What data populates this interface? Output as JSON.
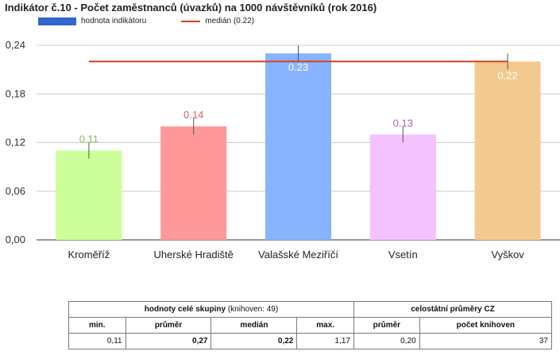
{
  "title": "Indikátor č.10 - Počet zaměstnanců (úvazků) na 1000 návštěvníků (rok 2016)",
  "legend": {
    "bar_label": "hodnota indikátoru",
    "line_label": "medián (0.22)"
  },
  "chart_data": {
    "type": "bar",
    "categories": [
      "Kroměříž",
      "Uherské Hradiště",
      "Valašské Meziříčí",
      "Vsetín",
      "Vyškov"
    ],
    "values": [
      0.11,
      0.14,
      0.23,
      0.13,
      0.22
    ],
    "value_labels": [
      "0.11",
      "0.14",
      "0.23",
      "0.13",
      "0.22"
    ],
    "bar_colors": [
      "#ccff99",
      "#ff9999",
      "#88b4ff",
      "#f4c2ff",
      "#f4c990"
    ],
    "label_colors": [
      "#88bb55",
      "#cc6666",
      "#ffffff",
      "#aa66bb",
      "#ffffff"
    ],
    "median": 0.22,
    "median_color": "#cc4422",
    "yticks": [
      "0,00",
      "0,06",
      "0,12",
      "0,18",
      "0,24"
    ],
    "ytick_values": [
      0,
      0.06,
      0.12,
      0.18,
      0.24
    ],
    "ylim": [
      0,
      0.24
    ],
    "grid": true
  },
  "table": {
    "group_header": "hodnoty celé skupiny",
    "group_note": "(knihoven: 49)",
    "national_header": "celostátní průměry CZ",
    "columns": [
      "min.",
      "průměr",
      "medián",
      "max.",
      "průměr",
      "počet knihoven"
    ],
    "values": [
      "0,11",
      "0,27",
      "0,22",
      "1,17",
      "0,20",
      "37"
    ]
  }
}
